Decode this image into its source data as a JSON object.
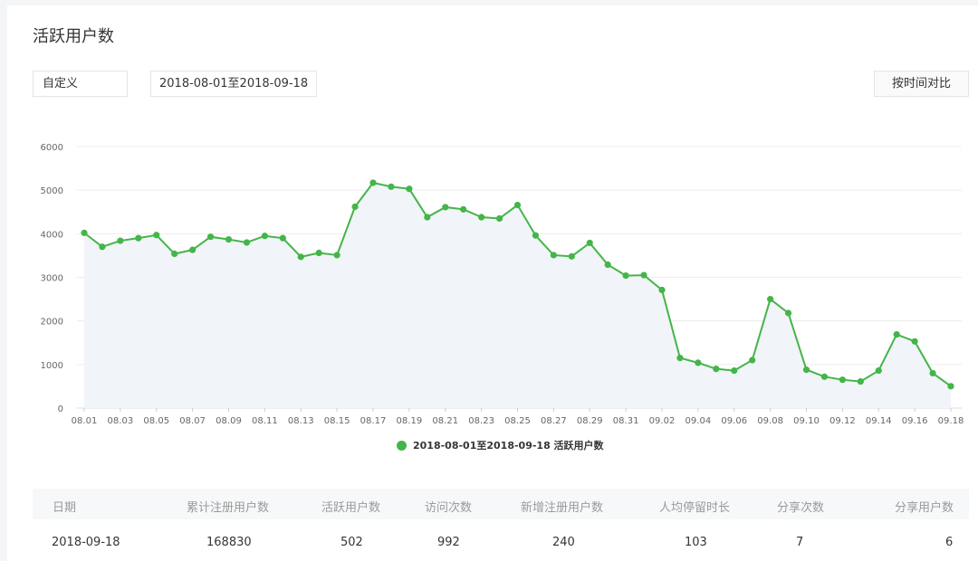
{
  "page": {
    "title": "活跃用户数",
    "range_select": "自定义",
    "date_range": "2018-08-01至2018-09-18",
    "compare_button": "按时间对比"
  },
  "chart_data": {
    "type": "line",
    "title": "",
    "xlabel": "",
    "ylabel": "",
    "ylim": [
      0,
      6000
    ],
    "yticks": [
      0,
      1000,
      2000,
      3000,
      4000,
      5000,
      6000
    ],
    "grid": true,
    "area_fill": true,
    "x_tick_labels": [
      "08.01",
      "08.03",
      "08.05",
      "08.07",
      "08.09",
      "08.11",
      "08.13",
      "08.15",
      "08.17",
      "08.19",
      "08.21",
      "08.23",
      "08.25",
      "08.27",
      "08.29",
      "08.31",
      "09.02",
      "09.04",
      "09.06",
      "09.08",
      "09.10",
      "09.12",
      "09.14",
      "09.16",
      "09.18"
    ],
    "x": [
      "08.01",
      "08.02",
      "08.03",
      "08.04",
      "08.05",
      "08.06",
      "08.07",
      "08.08",
      "08.09",
      "08.10",
      "08.11",
      "08.12",
      "08.13",
      "08.14",
      "08.15",
      "08.16",
      "08.17",
      "08.18",
      "08.19",
      "08.20",
      "08.21",
      "08.22",
      "08.23",
      "08.24",
      "08.25",
      "08.26",
      "08.27",
      "08.28",
      "08.29",
      "08.30",
      "08.31",
      "09.01",
      "09.02",
      "09.03",
      "09.04",
      "09.05",
      "09.06",
      "09.07",
      "09.08",
      "09.09",
      "09.10",
      "09.11",
      "09.12",
      "09.13",
      "09.14",
      "09.15",
      "09.16",
      "09.17",
      "09.18"
    ],
    "series": [
      {
        "name": "2018-08-01至2018-09-18 活跃用户数",
        "color": "#44b549",
        "values": [
          4020,
          3700,
          3840,
          3900,
          3970,
          3540,
          3630,
          3930,
          3870,
          3800,
          3950,
          3900,
          3470,
          3560,
          3510,
          4620,
          5170,
          5080,
          5030,
          4380,
          4610,
          4560,
          4380,
          4350,
          4660,
          3960,
          3510,
          3480,
          3790,
          3290,
          3040,
          3050,
          2710,
          1150,
          1040,
          900,
          860,
          1100,
          2500,
          2180,
          880,
          720,
          650,
          610,
          860,
          1690,
          1530,
          800,
          502
        ]
      }
    ]
  },
  "table": {
    "headers": [
      "日期",
      "累计注册用户数",
      "活跃用户数",
      "访问次数",
      "新增注册用户数",
      "人均停留时长",
      "分享次数",
      "分享用户数"
    ],
    "rows": [
      [
        "2018-09-18",
        "168830",
        "502",
        "992",
        "240",
        "103",
        "7",
        "6"
      ]
    ]
  }
}
